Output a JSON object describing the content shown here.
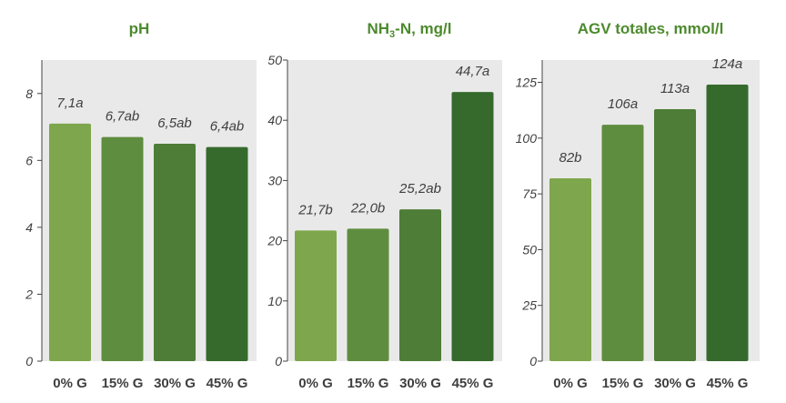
{
  "chart_data": [
    {
      "type": "bar",
      "title": "pH",
      "title_parts": [
        {
          "text": "pH"
        }
      ],
      "categories": [
        "0% G",
        "15% G",
        "30% G",
        "45% G"
      ],
      "values": [
        7.1,
        6.7,
        6.5,
        6.4
      ],
      "data_labels": [
        "7,1a",
        "6,7ab",
        "6,5ab",
        "6,4ab"
      ],
      "ylim": [
        0,
        9
      ],
      "yticks": [
        0,
        2,
        4,
        6,
        8
      ],
      "ytick_labels": [
        "0",
        "2",
        "4",
        "6",
        "8"
      ],
      "xlabel": "",
      "ylabel": ""
    },
    {
      "type": "bar",
      "title": "NH3-N, mg/l",
      "title_parts": [
        {
          "text": "NH"
        },
        {
          "text": "3",
          "sub": true
        },
        {
          "text": "-N, mg/l"
        }
      ],
      "categories": [
        "0% G",
        "15% G",
        "30% G",
        "45% G"
      ],
      "values": [
        21.7,
        22.0,
        25.2,
        44.7
      ],
      "data_labels": [
        "21,7b",
        "22,0b",
        "25,2ab",
        "44,7a"
      ],
      "ylim": [
        0,
        50
      ],
      "yticks": [
        0,
        10,
        20,
        30,
        40,
        50
      ],
      "ytick_labels": [
        "0",
        "10",
        "20",
        "30",
        "40",
        "50"
      ],
      "xlabel": "",
      "ylabel": ""
    },
    {
      "type": "bar",
      "title": "AGV totales, mmol/l",
      "title_parts": [
        {
          "text": "AGV totales, mmol/l"
        }
      ],
      "categories": [
        "0% G",
        "15% G",
        "30% G",
        "45% G"
      ],
      "values": [
        82,
        106,
        113,
        124
      ],
      "data_labels": [
        "82b",
        "106a",
        "113a",
        "124a"
      ],
      "ylim": [
        0,
        135
      ],
      "yticks": [
        0,
        25,
        50,
        75,
        100,
        125
      ],
      "ytick_labels": [
        "0",
        "25",
        "50",
        "75",
        "100",
        "125"
      ],
      "xlabel": "",
      "ylabel": ""
    }
  ],
  "colors": {
    "bars": [
      "#7ea64c",
      "#5f8d3f",
      "#4d7d36",
      "#356a2c"
    ],
    "panel_background": "#e9e9e9",
    "title": "#4d8a2e",
    "tick_label": "#3f3f3f",
    "axis": "#444444"
  }
}
